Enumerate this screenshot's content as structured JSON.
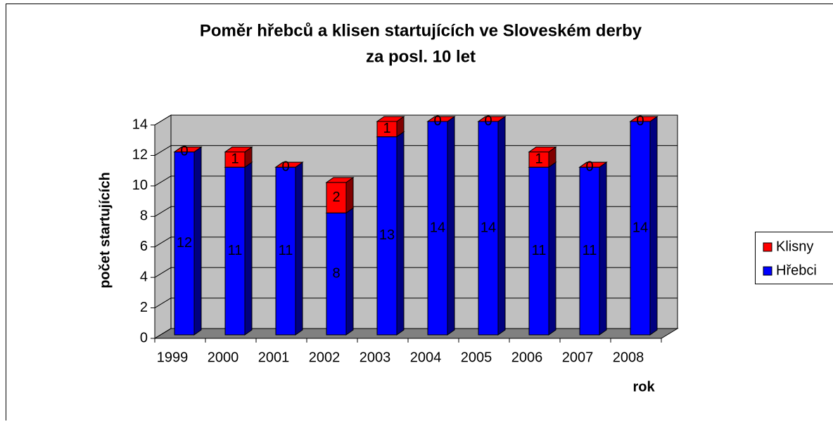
{
  "chart_data": {
    "type": "bar",
    "stacked": true,
    "title": [
      "Poměr hřebců a klisen startujících ve Sloveském derby",
      "za posl. 10 let"
    ],
    "x_label": "rok",
    "y_label": "počet startujících",
    "categories": [
      "1999",
      "2000",
      "2001",
      "2002",
      "2003",
      "2004",
      "2005",
      "2006",
      "2007",
      "2008"
    ],
    "series": [
      {
        "name": "Hřebci",
        "color": "#0000ff",
        "values": [
          12,
          11,
          11,
          8,
          13,
          14,
          14,
          11,
          11,
          14
        ]
      },
      {
        "name": "Klisny",
        "color": "#ff0000",
        "values": [
          0,
          1,
          0,
          2,
          1,
          0,
          0,
          1,
          0,
          0
        ]
      }
    ],
    "ylim": [
      0,
      14
    ],
    "yticks": [
      0,
      2,
      4,
      6,
      8,
      10,
      12,
      14
    ],
    "grid": true,
    "legend": "right"
  }
}
